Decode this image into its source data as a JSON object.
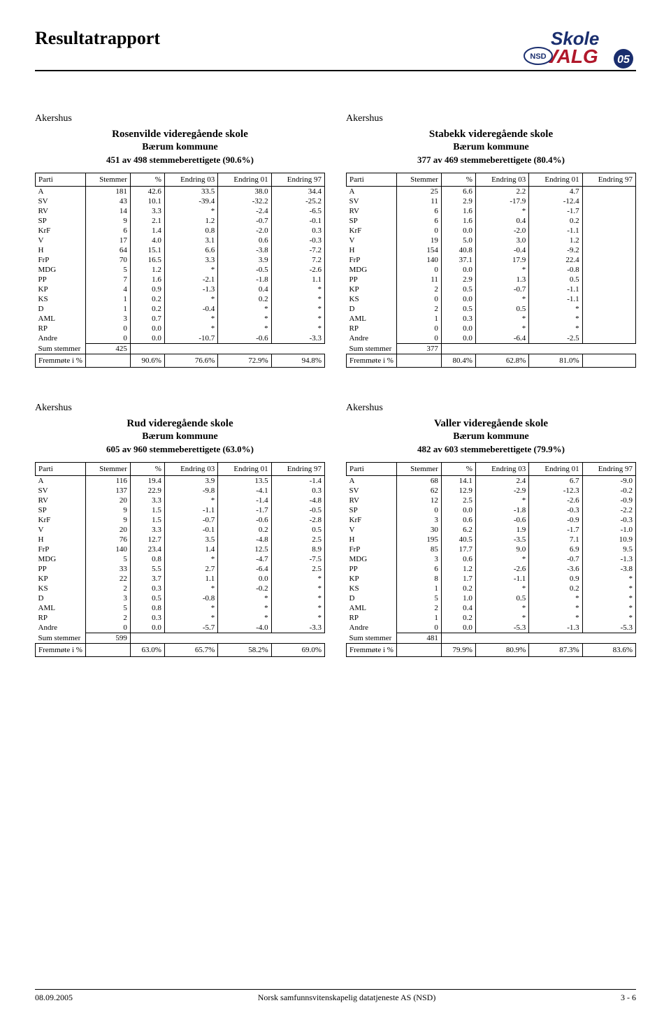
{
  "page": {
    "title": "Resultatrapport",
    "logo_text_top": "Skole",
    "logo_text_bottom": "VALG",
    "logo_nsd": "NSD",
    "logo_year": "05"
  },
  "columns": [
    "Parti",
    "Stemmer",
    "%",
    "Endring 03",
    "Endring 01",
    "Endring 97"
  ],
  "sum_label": "Sum stemmer",
  "fremmote_label": "Fremmøte i %",
  "blocks": [
    {
      "county": "Akershus",
      "school": "Rosenvilde videregående skole",
      "municipality": "Bærum kommune",
      "turnout": "451 av 498 stemmeberettigete (90.6%)",
      "rows": [
        [
          "A",
          "181",
          "42.6",
          "33.5",
          "38.0",
          "34.4"
        ],
        [
          "SV",
          "43",
          "10.1",
          "-39.4",
          "-32.2",
          "-25.2"
        ],
        [
          "RV",
          "14",
          "3.3",
          "*",
          "-2.4",
          "-6.5"
        ],
        [
          "SP",
          "9",
          "2.1",
          "1.2",
          "-0.7",
          "-0.1"
        ],
        [
          "KrF",
          "6",
          "1.4",
          "0.8",
          "-2.0",
          "0.3"
        ],
        [
          "V",
          "17",
          "4.0",
          "3.1",
          "0.6",
          "-0.3"
        ],
        [
          "H",
          "64",
          "15.1",
          "6.6",
          "-3.8",
          "-7.2"
        ],
        [
          "FrP",
          "70",
          "16.5",
          "3.3",
          "3.9",
          "7.2"
        ],
        [
          "MDG",
          "5",
          "1.2",
          "*",
          "-0.5",
          "-2.6"
        ],
        [
          "PP",
          "7",
          "1.6",
          "-2.1",
          "-1.8",
          "1.1"
        ],
        [
          "KP",
          "4",
          "0.9",
          "-1.3",
          "0.4",
          "*"
        ],
        [
          "KS",
          "1",
          "0.2",
          "*",
          "0.2",
          "*"
        ],
        [
          "D",
          "1",
          "0.2",
          "-0.4",
          "*",
          "*"
        ],
        [
          "AML",
          "3",
          "0.7",
          "*",
          "*",
          "*"
        ],
        [
          "RP",
          "0",
          "0.0",
          "*",
          "*",
          "*"
        ],
        [
          "Andre",
          "0",
          "0.0",
          "-10.7",
          "-0.6",
          "-3.3"
        ]
      ],
      "sum": "425",
      "fremmote": [
        "",
        "90.6%",
        "76.6%",
        "72.9%",
        "94.8%"
      ]
    },
    {
      "county": "Akershus",
      "school": "Stabekk videregående skole",
      "municipality": "Bærum kommune",
      "turnout": "377 av 469 stemmeberettigete (80.4%)",
      "rows": [
        [
          "A",
          "25",
          "6.6",
          "2.2",
          "4.7",
          ""
        ],
        [
          "SV",
          "11",
          "2.9",
          "-17.9",
          "-12.4",
          ""
        ],
        [
          "RV",
          "6",
          "1.6",
          "*",
          "-1.7",
          ""
        ],
        [
          "SP",
          "6",
          "1.6",
          "0.4",
          "0.2",
          ""
        ],
        [
          "KrF",
          "0",
          "0.0",
          "-2.0",
          "-1.1",
          ""
        ],
        [
          "V",
          "19",
          "5.0",
          "3.0",
          "1.2",
          ""
        ],
        [
          "H",
          "154",
          "40.8",
          "-0.4",
          "-9.2",
          ""
        ],
        [
          "FrP",
          "140",
          "37.1",
          "17.9",
          "22.4",
          ""
        ],
        [
          "MDG",
          "0",
          "0.0",
          "*",
          "-0.8",
          ""
        ],
        [
          "PP",
          "11",
          "2.9",
          "1.3",
          "0.5",
          ""
        ],
        [
          "KP",
          "2",
          "0.5",
          "-0.7",
          "-1.1",
          ""
        ],
        [
          "KS",
          "0",
          "0.0",
          "*",
          "-1.1",
          ""
        ],
        [
          "D",
          "2",
          "0.5",
          "0.5",
          "*",
          ""
        ],
        [
          "AML",
          "1",
          "0.3",
          "*",
          "*",
          ""
        ],
        [
          "RP",
          "0",
          "0.0",
          "*",
          "*",
          ""
        ],
        [
          "Andre",
          "0",
          "0.0",
          "-6.4",
          "-2.5",
          ""
        ]
      ],
      "sum": "377",
      "fremmote": [
        "",
        "80.4%",
        "62.8%",
        "81.0%",
        ""
      ]
    },
    {
      "county": "Akershus",
      "school": "Rud videregående skole",
      "municipality": "Bærum kommune",
      "turnout": "605 av 960 stemmeberettigete (63.0%)",
      "rows": [
        [
          "A",
          "116",
          "19.4",
          "3.9",
          "13.5",
          "-1.4"
        ],
        [
          "SV",
          "137",
          "22.9",
          "-9.8",
          "-4.1",
          "0.3"
        ],
        [
          "RV",
          "20",
          "3.3",
          "*",
          "-1.4",
          "-4.8"
        ],
        [
          "SP",
          "9",
          "1.5",
          "-1.1",
          "-1.7",
          "-0.5"
        ],
        [
          "KrF",
          "9",
          "1.5",
          "-0.7",
          "-0.6",
          "-2.8"
        ],
        [
          "V",
          "20",
          "3.3",
          "-0.1",
          "0.2",
          "0.5"
        ],
        [
          "H",
          "76",
          "12.7",
          "3.5",
          "-4.8",
          "2.5"
        ],
        [
          "FrP",
          "140",
          "23.4",
          "1.4",
          "12.5",
          "8.9"
        ],
        [
          "MDG",
          "5",
          "0.8",
          "*",
          "-4.7",
          "-7.5"
        ],
        [
          "PP",
          "33",
          "5.5",
          "2.7",
          "-6.4",
          "2.5"
        ],
        [
          "KP",
          "22",
          "3.7",
          "1.1",
          "0.0",
          "*"
        ],
        [
          "KS",
          "2",
          "0.3",
          "*",
          "-0.2",
          "*"
        ],
        [
          "D",
          "3",
          "0.5",
          "-0.8",
          "*",
          "*"
        ],
        [
          "AML",
          "5",
          "0.8",
          "*",
          "*",
          "*"
        ],
        [
          "RP",
          "2",
          "0.3",
          "*",
          "*",
          "*"
        ],
        [
          "Andre",
          "0",
          "0.0",
          "-5.7",
          "-4.0",
          "-3.3"
        ]
      ],
      "sum": "599",
      "fremmote": [
        "",
        "63.0%",
        "65.7%",
        "58.2%",
        "69.0%"
      ]
    },
    {
      "county": "Akershus",
      "school": "Valler videregående skole",
      "municipality": "Bærum kommune",
      "turnout": "482 av 603 stemmeberettigete (79.9%)",
      "rows": [
        [
          "A",
          "68",
          "14.1",
          "2.4",
          "6.7",
          "-9.0"
        ],
        [
          "SV",
          "62",
          "12.9",
          "-2.9",
          "-12.3",
          "-0.2"
        ],
        [
          "RV",
          "12",
          "2.5",
          "*",
          "-2.6",
          "-0.9"
        ],
        [
          "SP",
          "0",
          "0.0",
          "-1.8",
          "-0.3",
          "-2.2"
        ],
        [
          "KrF",
          "3",
          "0.6",
          "-0.6",
          "-0.9",
          "-0.3"
        ],
        [
          "V",
          "30",
          "6.2",
          "1.9",
          "-1.7",
          "-1.0"
        ],
        [
          "H",
          "195",
          "40.5",
          "-3.5",
          "7.1",
          "10.9"
        ],
        [
          "FrP",
          "85",
          "17.7",
          "9.0",
          "6.9",
          "9.5"
        ],
        [
          "MDG",
          "3",
          "0.6",
          "*",
          "-0.7",
          "-1.3"
        ],
        [
          "PP",
          "6",
          "1.2",
          "-2.6",
          "-3.6",
          "-3.8"
        ],
        [
          "KP",
          "8",
          "1.7",
          "-1.1",
          "0.9",
          "*"
        ],
        [
          "KS",
          "1",
          "0.2",
          "*",
          "0.2",
          "*"
        ],
        [
          "D",
          "5",
          "1.0",
          "0.5",
          "*",
          "*"
        ],
        [
          "AML",
          "2",
          "0.4",
          "*",
          "*",
          "*"
        ],
        [
          "RP",
          "1",
          "0.2",
          "*",
          "*",
          "*"
        ],
        [
          "Andre",
          "0",
          "0.0",
          "-5.3",
          "-1.3",
          "-5.3"
        ]
      ],
      "sum": "481",
      "fremmote": [
        "",
        "79.9%",
        "80.9%",
        "87.3%",
        "83.6%"
      ]
    }
  ],
  "footer": {
    "date": "08.09.2005",
    "org": "Norsk samfunnsvitenskapelig datatjeneste AS (NSD)",
    "page": "3 - 6"
  }
}
